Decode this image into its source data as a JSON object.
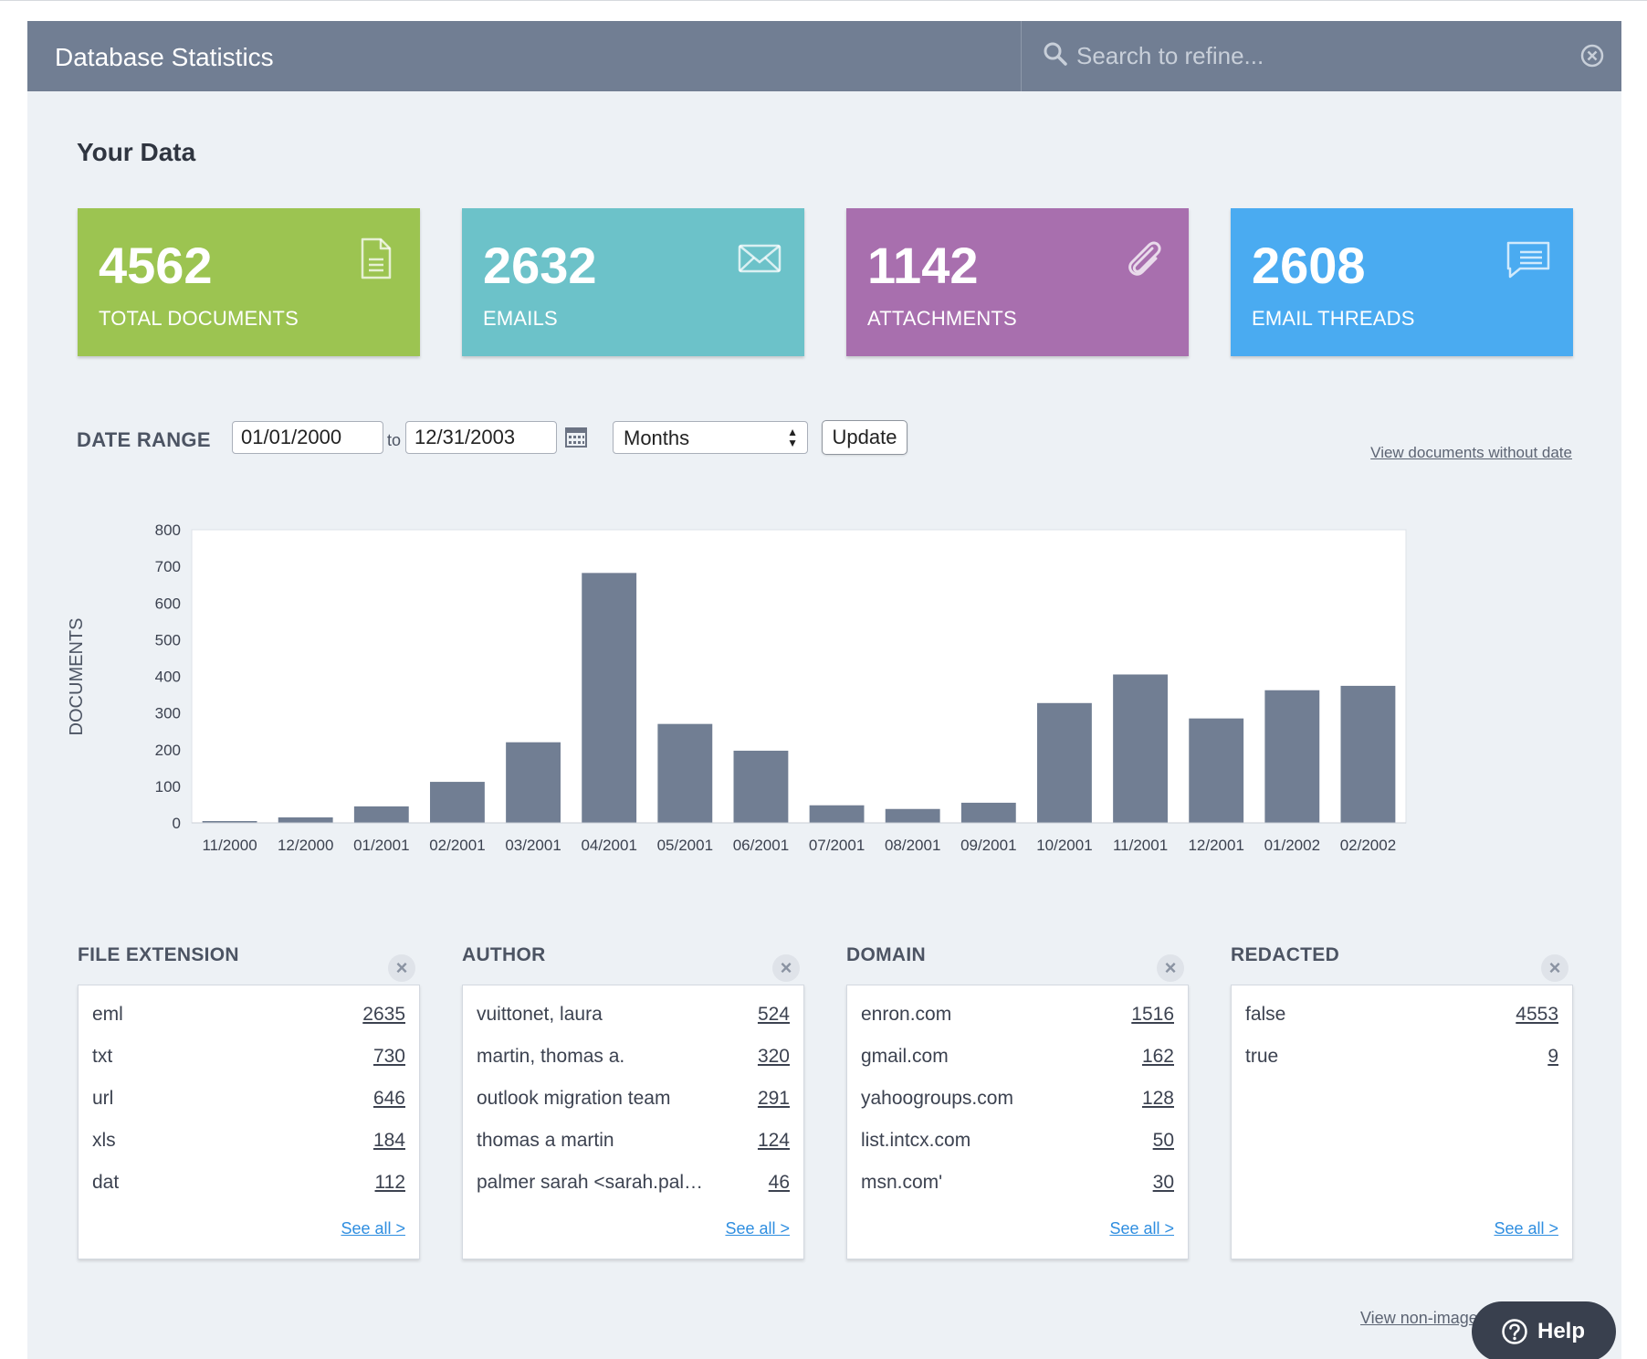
{
  "header": {
    "title": "Database Statistics",
    "search_placeholder": "Search to refine..."
  },
  "section_title": "Your Data",
  "stats": [
    {
      "value": "4562",
      "label": "TOTAL DOCUMENTS",
      "color": "#9cc451",
      "icon": "document-icon"
    },
    {
      "value": "2632",
      "label": "EMAILS",
      "color": "#6cc2c9",
      "icon": "envelope-icon"
    },
    {
      "value": "1142",
      "label": "ATTACHMENTS",
      "color": "#a86fae",
      "icon": "paperclip-icon"
    },
    {
      "value": "2608",
      "label": "EMAIL THREADS",
      "color": "#4aabf1",
      "icon": "chat-bubble-icon"
    }
  ],
  "date_range": {
    "label": "DATE RANGE",
    "from": "01/01/2000",
    "to_label": "to",
    "to": "12/31/2003",
    "interval": "Months",
    "update_label": "Update",
    "no_date_link": "View documents without date"
  },
  "chart_data": {
    "type": "bar",
    "ylabel": "DOCUMENTS",
    "ylim": [
      0,
      800
    ],
    "yticks": [
      0,
      100,
      200,
      300,
      400,
      500,
      600,
      700,
      800
    ],
    "categories": [
      "11/2000",
      "12/2000",
      "01/2001",
      "02/2001",
      "03/2001",
      "04/2001",
      "05/2001",
      "06/2001",
      "07/2001",
      "08/2001",
      "09/2001",
      "10/2001",
      "11/2001",
      "12/2001",
      "01/2002",
      "02/2002"
    ],
    "values": [
      5,
      15,
      45,
      112,
      220,
      682,
      270,
      197,
      48,
      38,
      55,
      327,
      405,
      285,
      362,
      374
    ],
    "bar_color": "#717e93",
    "grid": false
  },
  "panels": [
    {
      "title": "FILE EXTENSION",
      "rows": [
        {
          "label": "eml",
          "count": "2635"
        },
        {
          "label": "txt",
          "count": "730"
        },
        {
          "label": "url",
          "count": "646"
        },
        {
          "label": "xls",
          "count": "184"
        },
        {
          "label": "dat",
          "count": "112"
        }
      ],
      "see_all": "See all >"
    },
    {
      "title": "AUTHOR",
      "rows": [
        {
          "label": "vuittonet, laura",
          "count": "524"
        },
        {
          "label": "martin, thomas a.",
          "count": "320"
        },
        {
          "label": "outlook migration team",
          "count": "291"
        },
        {
          "label": "thomas a martin",
          "count": "124"
        },
        {
          "label": "palmer sarah <sarah.pal…",
          "count": "46"
        }
      ],
      "see_all": "See all >"
    },
    {
      "title": "DOMAIN",
      "rows": [
        {
          "label": "enron.com",
          "count": "1516"
        },
        {
          "label": "gmail.com",
          "count": "162"
        },
        {
          "label": "yahoogroups.com",
          "count": "128"
        },
        {
          "label": "list.intcx.com",
          "count": "50"
        },
        {
          "label": "msn.com'",
          "count": "30"
        }
      ],
      "see_all": "See all >"
    },
    {
      "title": "REDACTED",
      "rows": [
        {
          "label": "false",
          "count": "4553"
        },
        {
          "label": "true",
          "count": "9"
        }
      ],
      "see_all": "See all >"
    }
  ],
  "footer": {
    "nonimage_link": "View non-image",
    "help_label": "Help"
  }
}
